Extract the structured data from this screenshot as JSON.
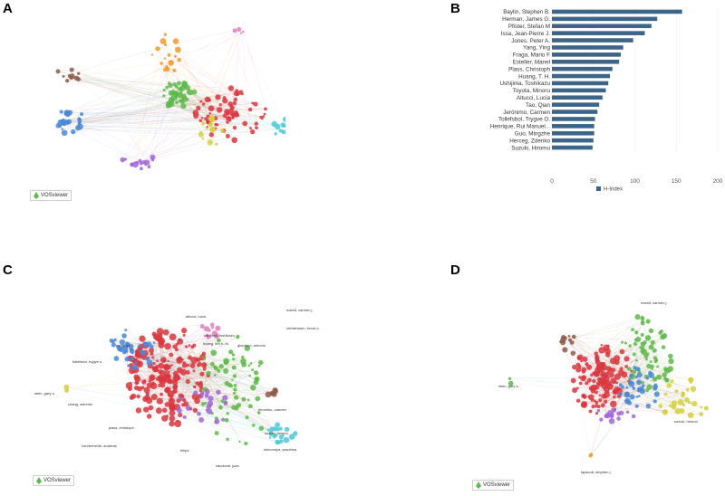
{
  "panels": {
    "a": {
      "letter": "A",
      "watermark": "VOSviewer"
    },
    "b": {
      "letter": "B"
    },
    "c": {
      "letter": "C",
      "watermark": "VOSviewer"
    },
    "d": {
      "letter": "D",
      "watermark": "VOSviewer"
    }
  },
  "colors": {
    "bar": "#3d6587",
    "red": "#d9363e",
    "green": "#5db94a",
    "blue": "#4a88d6",
    "yellow": "#d6cf3e",
    "purple": "#a167d6",
    "orange": "#f09a2e",
    "cyan": "#4dc8d6",
    "brown": "#8e5a48",
    "pink": "#e07fbf"
  },
  "network_labels": {
    "c": [
      "marsit, carmen j.",
      "christensen, brock c.",
      "altucci, lucia",
      "ushijima, toshikazu",
      "huang, tim h.-m.",
      "giordano, antonio",
      "kong, gu",
      "tollefsbol, trygve o.",
      "stein, gary s.",
      "zhang, wenmin",
      "vonderheide, andreas",
      "plass, christoph",
      "jeronimo, carmen",
      "suzuki, hiromu",
      "shinomiya, yasuhisa",
      "felipe",
      "sandoval, juan"
    ],
    "d": [
      "marsit, carmen j.",
      "stein, gary s.",
      "suzuki, hiromu",
      "tapscott, stephen j."
    ]
  },
  "chart_data": {
    "type": "bar",
    "orientation": "horizontal",
    "categories": [
      "Baylin, Stephen B.",
      "Herman, James G.",
      "Pfister, Stefan M",
      "Issa, Jean-Pierre J.",
      "Jones, Peter A.",
      "Yang, Ying",
      "Fraga, Mario F",
      "Esteller, Manel",
      "Plass, Christoph",
      "Huang, T. H.",
      "Ushijima, Toshikazu",
      "Toyota, Minoru",
      "Altucci, Lucia",
      "Tao, Qian",
      "Jerónimo, Carmen",
      "Tollefsbol, Trygve O.",
      "Henrique, Rui Manuel...",
      "Guo, Mingzhe",
      "Herceg, Zdenko",
      "Suzuki, Hiromu"
    ],
    "series": [
      {
        "name": "H-Index",
        "values": [
          157,
          127,
          120,
          112,
          98,
          86,
          83,
          81,
          73,
          70,
          68,
          65,
          61,
          57,
          55,
          52,
          51,
          51,
          50,
          49
        ]
      }
    ],
    "xlim": [
      0,
      200
    ],
    "xticks": [
      0,
      50,
      100,
      150,
      200
    ],
    "legend": "bottom-center",
    "title": "",
    "xlabel": "",
    "ylabel": ""
  }
}
